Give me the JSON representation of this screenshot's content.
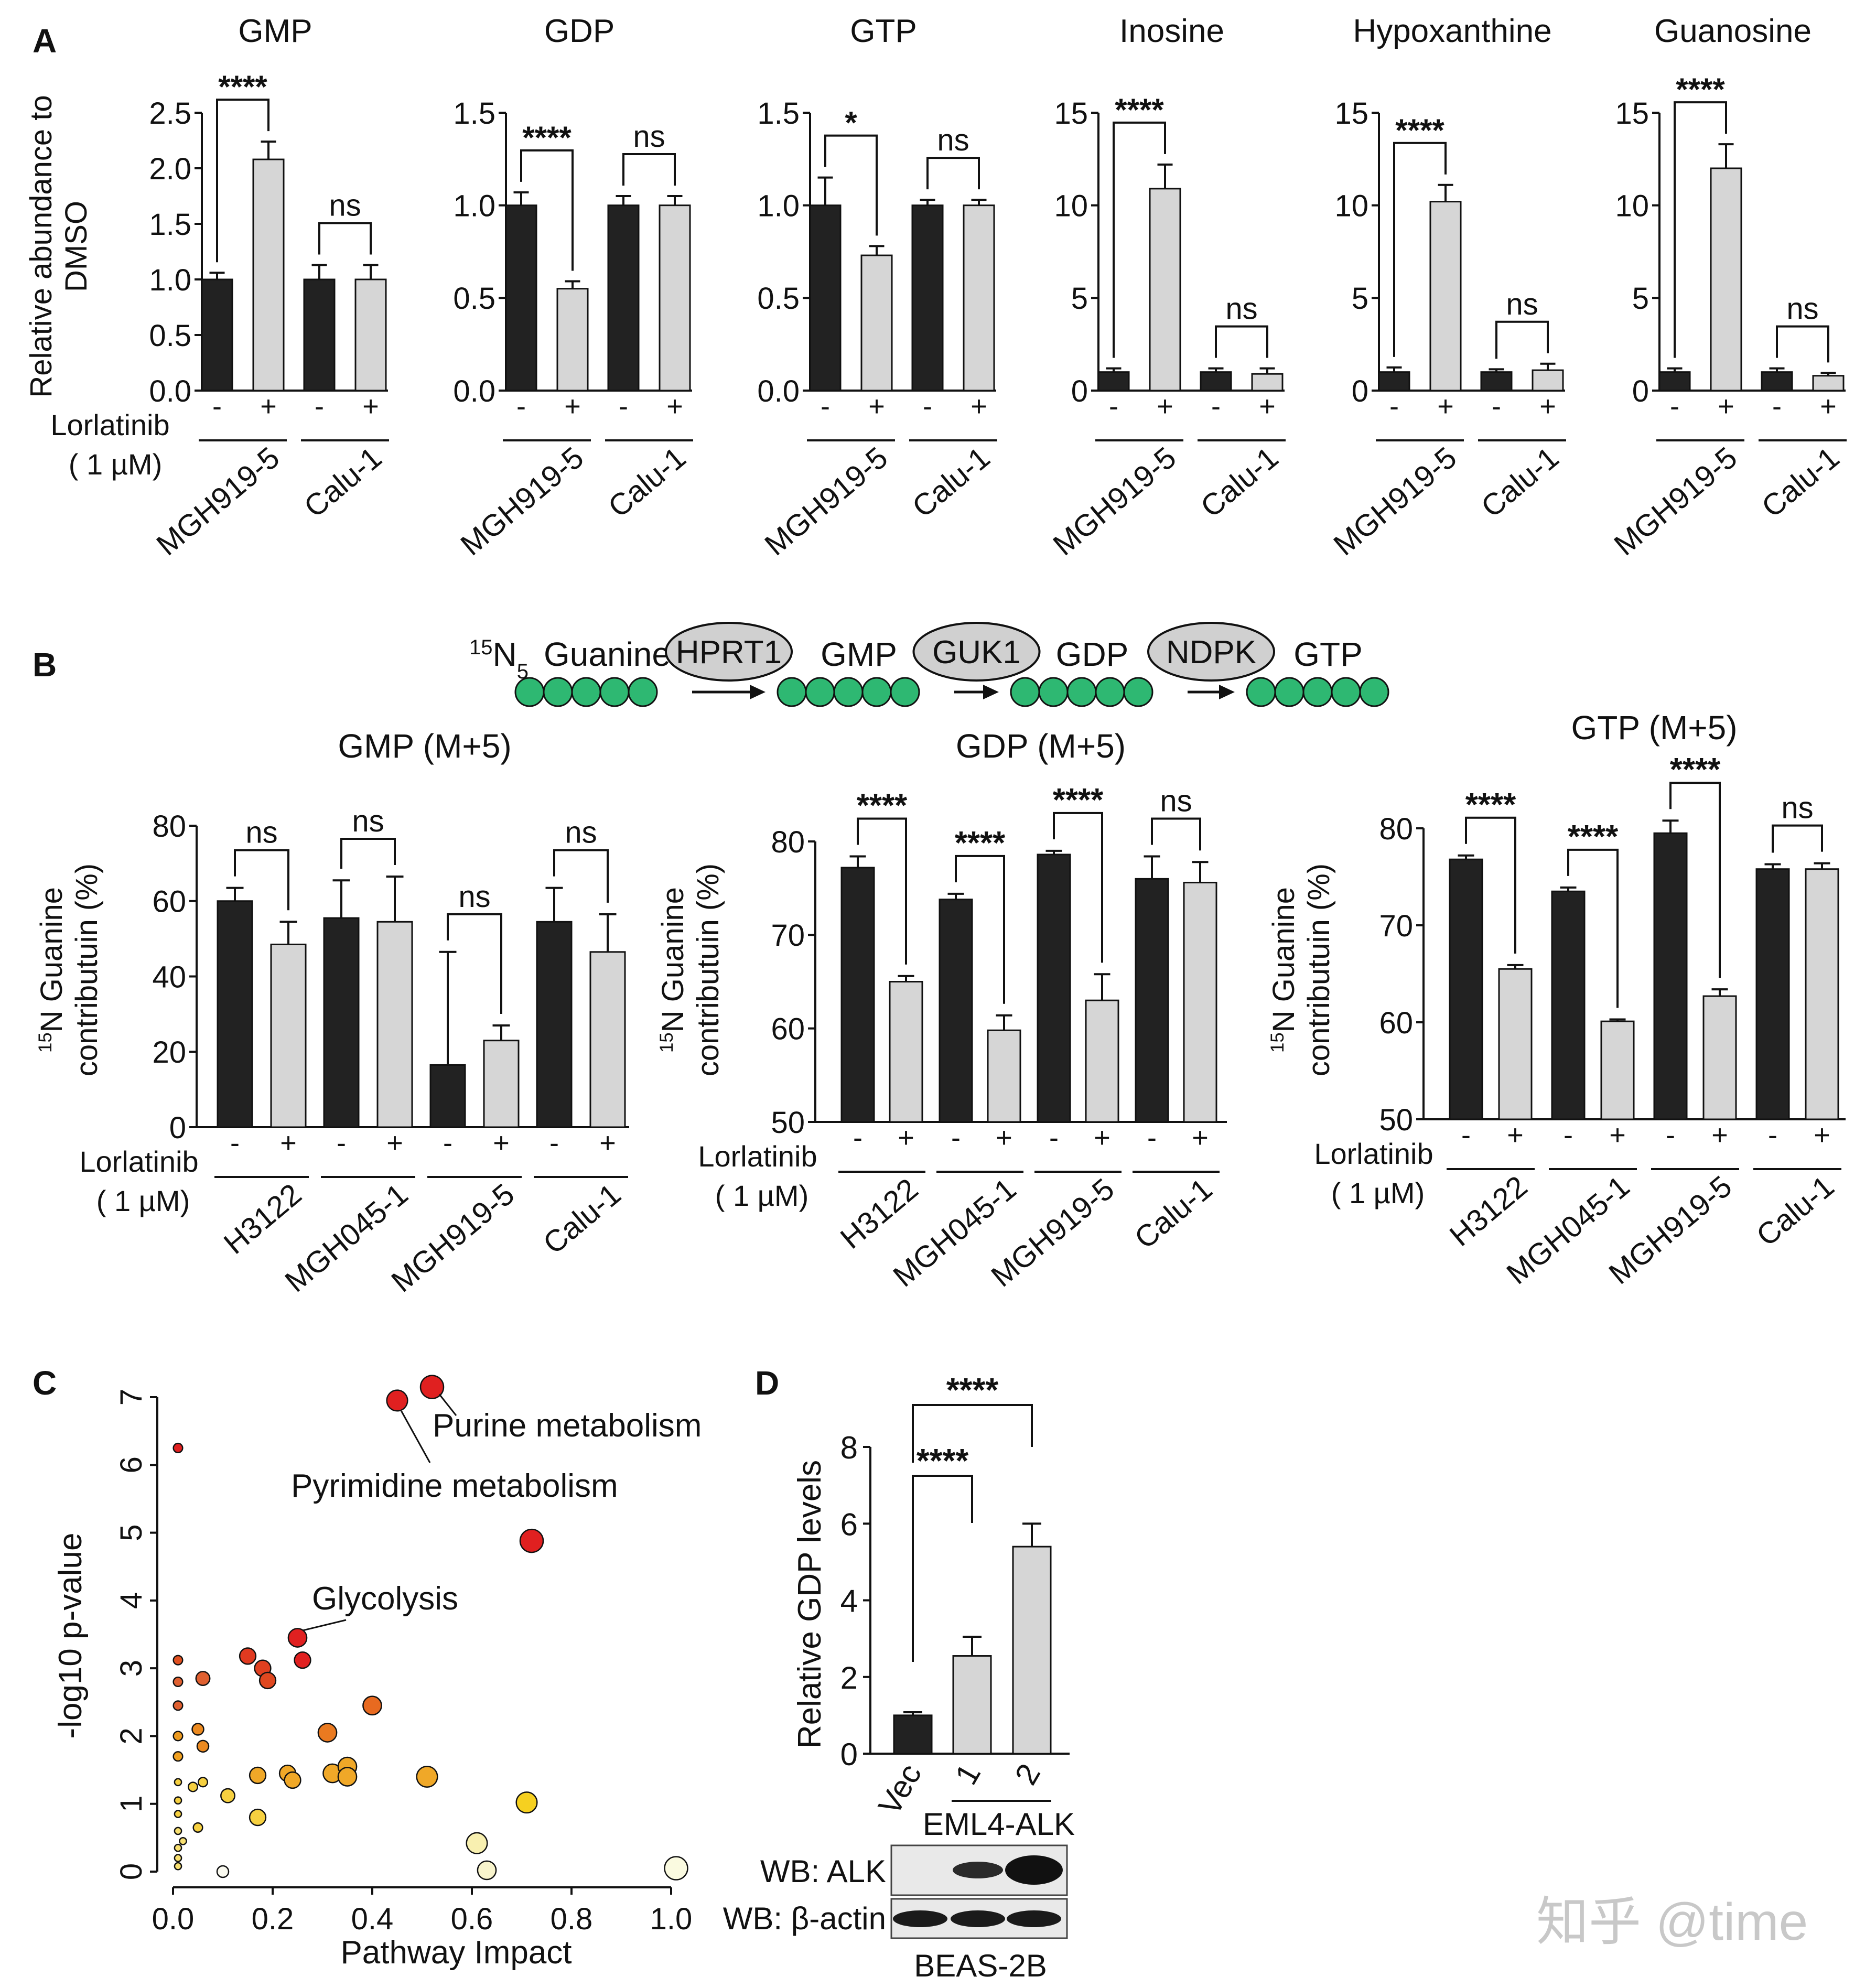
{
  "panel_letters": [
    "A",
    "B",
    "C",
    "D"
  ],
  "treatment": {
    "label": "Lorlatinib",
    "dose": "( 1 µM)",
    "minus": "-",
    "plus": "+"
  },
  "colors": {
    "dmso": "#222222",
    "lorlatinib": "#d6d6d6",
    "node": "#2eb872",
    "enzyme": "#d0d0d0"
  },
  "pathway": {
    "label_prefix": "15N5",
    "steps": [
      {
        "label": "Guanine",
        "enzyme": "HPRT1"
      },
      {
        "label": "GMP",
        "enzyme": "GUK1"
      },
      {
        "label": "GDP",
        "enzyme": "NDPK"
      },
      {
        "label": "GTP",
        "enzyme": ""
      }
    ]
  },
  "chart_data": [
    {
      "panel": "A",
      "type": "bar",
      "title": "GMP",
      "ylabel": "Relative abundance to DMSO",
      "ylim": [
        0,
        2.5
      ],
      "yticks": [
        "0.0",
        "0.5",
        "1.0",
        "1.5",
        "2.0",
        "2.5"
      ],
      "groups": [
        "MGH919-5",
        "Calu-1"
      ],
      "series": [
        {
          "name": "-",
          "values": [
            1.0,
            1.0
          ],
          "errors": [
            0.06,
            0.13
          ]
        },
        {
          "name": "+",
          "values": [
            2.08,
            1.0
          ],
          "errors": [
            0.16,
            0.13
          ]
        }
      ],
      "significance": [
        "****",
        "ns"
      ]
    },
    {
      "panel": "A",
      "type": "bar",
      "title": "GDP",
      "ylabel": "",
      "ylim": [
        0,
        1.5
      ],
      "yticks": [
        "0.0",
        "0.5",
        "1.0",
        "1.5"
      ],
      "groups": [
        "MGH919-5",
        "Calu-1"
      ],
      "series": [
        {
          "name": "-",
          "values": [
            1.0,
            1.0
          ],
          "errors": [
            0.07,
            0.05
          ]
        },
        {
          "name": "+",
          "values": [
            0.55,
            1.0
          ],
          "errors": [
            0.04,
            0.05
          ]
        }
      ],
      "significance": [
        "****",
        "ns"
      ]
    },
    {
      "panel": "A",
      "type": "bar",
      "title": "GTP",
      "ylabel": "",
      "ylim": [
        0,
        1.5
      ],
      "yticks": [
        "0.0",
        "0.5",
        "1.0",
        "1.5"
      ],
      "groups": [
        "MGH919-5",
        "Calu-1"
      ],
      "series": [
        {
          "name": "-",
          "values": [
            1.0,
            1.0
          ],
          "errors": [
            0.15,
            0.03
          ]
        },
        {
          "name": "+",
          "values": [
            0.73,
            1.0
          ],
          "errors": [
            0.05,
            0.03
          ]
        }
      ],
      "significance": [
        "*",
        "ns"
      ]
    },
    {
      "panel": "A",
      "type": "bar",
      "title": "Inosine",
      "ylabel": "",
      "ylim": [
        0,
        15
      ],
      "yticks": [
        "0",
        "5",
        "10",
        "15"
      ],
      "groups": [
        "MGH919-5",
        "Calu-1"
      ],
      "series": [
        {
          "name": "-",
          "values": [
            1.0,
            1.0
          ],
          "errors": [
            0.2,
            0.2
          ]
        },
        {
          "name": "+",
          "values": [
            10.9,
            0.9
          ],
          "errors": [
            1.3,
            0.3
          ]
        }
      ],
      "significance": [
        "****",
        "ns"
      ]
    },
    {
      "panel": "A",
      "type": "bar",
      "title": "Hypoxanthine",
      "ylabel": "",
      "ylim": [
        0,
        15
      ],
      "yticks": [
        "0",
        "5",
        "10",
        "15"
      ],
      "groups": [
        "MGH919-5",
        "Calu-1"
      ],
      "series": [
        {
          "name": "-",
          "values": [
            1.0,
            1.0
          ],
          "errors": [
            0.25,
            0.15
          ]
        },
        {
          "name": "+",
          "values": [
            10.2,
            1.1
          ],
          "errors": [
            0.9,
            0.35
          ]
        }
      ],
      "significance": [
        "****",
        "ns"
      ]
    },
    {
      "panel": "A",
      "type": "bar",
      "title": "Guanosine",
      "ylabel": "",
      "ylim": [
        0,
        15
      ],
      "yticks": [
        "0",
        "5",
        "10",
        "15"
      ],
      "groups": [
        "MGH919-5",
        "Calu-1"
      ],
      "series": [
        {
          "name": "-",
          "values": [
            1.0,
            1.0
          ],
          "errors": [
            0.2,
            0.2
          ]
        },
        {
          "name": "+",
          "values": [
            12.0,
            0.8
          ],
          "errors": [
            1.3,
            0.15
          ]
        }
      ],
      "significance": [
        "****",
        "ns"
      ]
    },
    {
      "panel": "B",
      "type": "bar",
      "title": "GMP (M+5)",
      "ylabel": "15N Guanine contributuin (%)",
      "ylim": [
        0,
        80
      ],
      "yticks": [
        "0",
        "20",
        "40",
        "60",
        "80"
      ],
      "groups": [
        "H3122",
        "MGH045-1",
        "MGH919-5",
        "Calu-1"
      ],
      "series": [
        {
          "name": "-",
          "values": [
            60,
            55.5,
            16.5,
            54.5
          ],
          "errors": [
            3.5,
            10,
            30,
            9
          ]
        },
        {
          "name": "+",
          "values": [
            48.5,
            54.5,
            23,
            46.5
          ],
          "errors": [
            6,
            12,
            4,
            10
          ]
        }
      ],
      "significance": [
        "ns",
        "ns",
        "ns",
        "ns"
      ]
    },
    {
      "panel": "B",
      "type": "bar",
      "title": "GDP (M+5)",
      "ylabel": "15N Guanine contributuin (%)",
      "ylim": [
        50,
        80
      ],
      "yticks": [
        "50",
        "60",
        "70",
        "80"
      ],
      "groups": [
        "H3122",
        "MGH045-1",
        "MGH919-5",
        "Calu-1"
      ],
      "series": [
        {
          "name": "-",
          "values": [
            77.2,
            73.8,
            78.6,
            76.0
          ],
          "errors": [
            1.2,
            0.6,
            0.4,
            2.4
          ]
        },
        {
          "name": "+",
          "values": [
            65.0,
            59.8,
            63.0,
            75.6
          ],
          "errors": [
            0.6,
            1.6,
            2.8,
            2.2
          ]
        }
      ],
      "significance": [
        "****",
        "****",
        "****",
        "ns"
      ]
    },
    {
      "panel": "B",
      "type": "bar",
      "title": "GTP (M+5)",
      "ylabel": "15N Guanine contributuin (%)",
      "ylim": [
        50,
        80
      ],
      "yticks": [
        "50",
        "60",
        "70",
        "80"
      ],
      "groups": [
        "H3122",
        "MGH045-1",
        "MGH919-5",
        "Calu-1"
      ],
      "series": [
        {
          "name": "-",
          "values": [
            76.8,
            73.5,
            79.5,
            75.8
          ],
          "errors": [
            0.4,
            0.4,
            1.3,
            0.5
          ]
        },
        {
          "name": "+",
          "values": [
            65.5,
            60.1,
            62.7,
            75.8
          ],
          "errors": [
            0.4,
            0.2,
            0.7,
            0.6
          ]
        }
      ],
      "significance": [
        "****",
        "****",
        "****",
        "ns"
      ]
    },
    {
      "panel": "C",
      "type": "scatter",
      "title": "",
      "xlabel": "Pathway Impact",
      "ylabel": "-log10 p-value",
      "xlim": [
        0,
        1.0
      ],
      "ylim": [
        0,
        7
      ],
      "xticks": [
        "0.0",
        "0.2",
        "0.4",
        "0.6",
        "0.8",
        "1.0"
      ],
      "yticks": [
        "0",
        "1",
        "2",
        "3",
        "4",
        "5",
        "6",
        "7"
      ],
      "points": [
        {
          "x": 0.52,
          "y": 7.15,
          "r": 10,
          "c": "#e02020"
        },
        {
          "x": 0.45,
          "y": 6.95,
          "r": 9,
          "c": "#e02020"
        },
        {
          "x": 0.72,
          "y": 4.88,
          "r": 10,
          "c": "#e02020"
        },
        {
          "x": 0.01,
          "y": 6.25,
          "r": 4,
          "c": "#e02020"
        },
        {
          "x": 0.25,
          "y": 3.45,
          "r": 8,
          "c": "#e02020"
        },
        {
          "x": 0.26,
          "y": 3.12,
          "r": 7,
          "c": "#e02020"
        },
        {
          "x": 0.15,
          "y": 3.18,
          "r": 7,
          "c": "#e03a20"
        },
        {
          "x": 0.18,
          "y": 3.0,
          "r": 7,
          "c": "#e04020"
        },
        {
          "x": 0.19,
          "y": 2.82,
          "r": 7,
          "c": "#e04820"
        },
        {
          "x": 0.06,
          "y": 2.85,
          "r": 6,
          "c": "#e06030"
        },
        {
          "x": 0.01,
          "y": 3.12,
          "r": 4,
          "c": "#e05020"
        },
        {
          "x": 0.01,
          "y": 2.8,
          "r": 4,
          "c": "#e06030"
        },
        {
          "x": 0.01,
          "y": 2.45,
          "r": 4,
          "c": "#e06030"
        },
        {
          "x": 0.4,
          "y": 2.45,
          "r": 8,
          "c": "#e86a20"
        },
        {
          "x": 0.31,
          "y": 2.05,
          "r": 8,
          "c": "#ea7a20"
        },
        {
          "x": 0.05,
          "y": 2.1,
          "r": 5,
          "c": "#ec8a20"
        },
        {
          "x": 0.06,
          "y": 1.85,
          "r": 5,
          "c": "#ec8a20"
        },
        {
          "x": 0.01,
          "y": 2.0,
          "r": 4,
          "c": "#ec9a20"
        },
        {
          "x": 0.01,
          "y": 1.7,
          "r": 4,
          "c": "#f0a020"
        },
        {
          "x": 0.17,
          "y": 1.42,
          "r": 7,
          "c": "#f0a828"
        },
        {
          "x": 0.23,
          "y": 1.45,
          "r": 7,
          "c": "#f0a828"
        },
        {
          "x": 0.24,
          "y": 1.35,
          "r": 7,
          "c": "#f0a828"
        },
        {
          "x": 0.32,
          "y": 1.45,
          "r": 8,
          "c": "#f0a828"
        },
        {
          "x": 0.35,
          "y": 1.55,
          "r": 8,
          "c": "#f0a828"
        },
        {
          "x": 0.35,
          "y": 1.4,
          "r": 8,
          "c": "#f0a828"
        },
        {
          "x": 0.51,
          "y": 1.4,
          "r": 9,
          "c": "#f0a828"
        },
        {
          "x": 0.01,
          "y": 1.32,
          "r": 3,
          "c": "#f6d040"
        },
        {
          "x": 0.04,
          "y": 1.25,
          "r": 4,
          "c": "#f6d040"
        },
        {
          "x": 0.06,
          "y": 1.32,
          "r": 4,
          "c": "#f6d040"
        },
        {
          "x": 0.11,
          "y": 1.12,
          "r": 6,
          "c": "#f6d040"
        },
        {
          "x": 0.01,
          "y": 1.05,
          "r": 3,
          "c": "#f6d040"
        },
        {
          "x": 0.01,
          "y": 0.85,
          "r": 3,
          "c": "#f6d040"
        },
        {
          "x": 0.05,
          "y": 0.65,
          "r": 4,
          "c": "#f6d040"
        },
        {
          "x": 0.17,
          "y": 0.8,
          "r": 7,
          "c": "#f6d040"
        },
        {
          "x": 0.71,
          "y": 1.02,
          "r": 9,
          "c": "#f6d020"
        },
        {
          "x": 0.01,
          "y": 0.6,
          "r": 3,
          "c": "#f8e070"
        },
        {
          "x": 0.02,
          "y": 0.45,
          "r": 3,
          "c": "#f8e070"
        },
        {
          "x": 0.01,
          "y": 0.35,
          "r": 3,
          "c": "#f8e070"
        },
        {
          "x": 0.01,
          "y": 0.2,
          "r": 3,
          "c": "#f8e070"
        },
        {
          "x": 0.01,
          "y": 0.08,
          "r": 3,
          "c": "#f8e070"
        },
        {
          "x": 0.61,
          "y": 0.42,
          "r": 9,
          "c": "#f8f0b0"
        },
        {
          "x": 0.63,
          "y": 0.02,
          "r": 8,
          "c": "#f8f4cc"
        },
        {
          "x": 0.1,
          "y": 0.0,
          "r": 5,
          "c": "#fafaf0"
        },
        {
          "x": 1.01,
          "y": 0.05,
          "r": 10,
          "c": "#fafae0"
        }
      ],
      "annotations": [
        {
          "text": "Purine metabolism",
          "x": 0.52,
          "y": 7.15
        },
        {
          "text": "Pyrimidine metabolism",
          "x": 0.45,
          "y": 6.95
        },
        {
          "text": "Glycolysis",
          "x": 0.25,
          "y": 3.45
        }
      ]
    },
    {
      "panel": "D",
      "type": "bar",
      "title": "",
      "ylabel": "Relative GDP levels",
      "ylim": [
        0,
        8
      ],
      "yticks": [
        "0",
        "2",
        "4",
        "6",
        "8"
      ],
      "categories": [
        "Vec",
        "1",
        "2"
      ],
      "group_label": "EML4-ALK",
      "values": [
        1.0,
        2.55,
        5.4
      ],
      "errors": [
        0.08,
        0.5,
        0.6
      ],
      "significance": [
        "****",
        "****"
      ]
    }
  ],
  "western_blot": {
    "rows": [
      "WB: ALK",
      "WB: β-actin"
    ],
    "cell_line": "BEAS-2B"
  },
  "watermark": "知乎 @time"
}
